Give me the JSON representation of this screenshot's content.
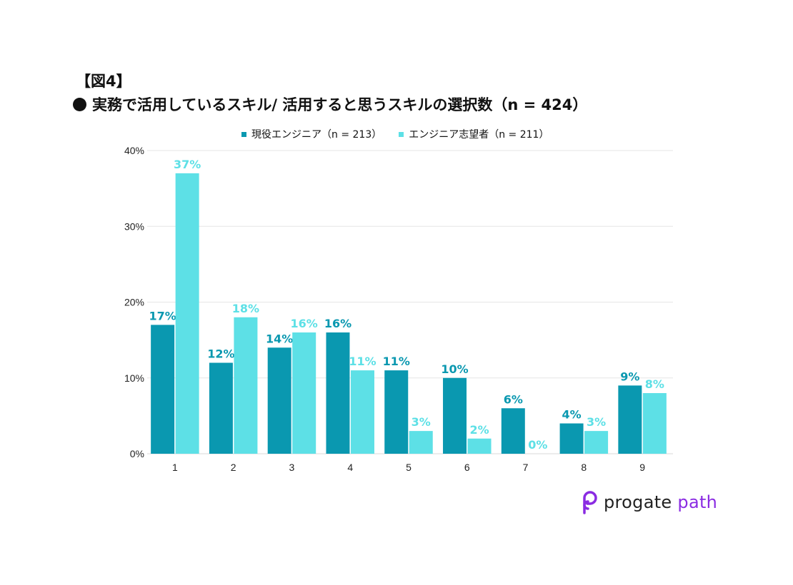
{
  "figure_label": "【図4】",
  "title": "実務で活用しているスキル/ 活用すると思うスキルの選択数（n = 424）",
  "colors": {
    "series1": "#0a98b0",
    "series2": "#5de0e6",
    "grid": "#e6e6e6",
    "axis": "#d8d8d8"
  },
  "chart_data": {
    "type": "bar",
    "categories": [
      "1",
      "2",
      "3",
      "4",
      "5",
      "6",
      "7",
      "8",
      "9"
    ],
    "series": [
      {
        "name": "現役エンジニア（n = 213）",
        "values": [
          17,
          12,
          14,
          16,
          11,
          10,
          6,
          4,
          9
        ]
      },
      {
        "name": "エンジニア志望者（n = 211）",
        "values": [
          37,
          18,
          16,
          11,
          3,
          2,
          0,
          3,
          8
        ]
      }
    ],
    "yticks": [
      "0%",
      "10%",
      "20%",
      "30%",
      "40%"
    ],
    "ylim": [
      0,
      40
    ],
    "value_suffix": "%",
    "grid": true,
    "legend_position": "top"
  },
  "logo": {
    "word1": "progate",
    "word2": "path",
    "icon": "progate-path-logo-icon"
  }
}
